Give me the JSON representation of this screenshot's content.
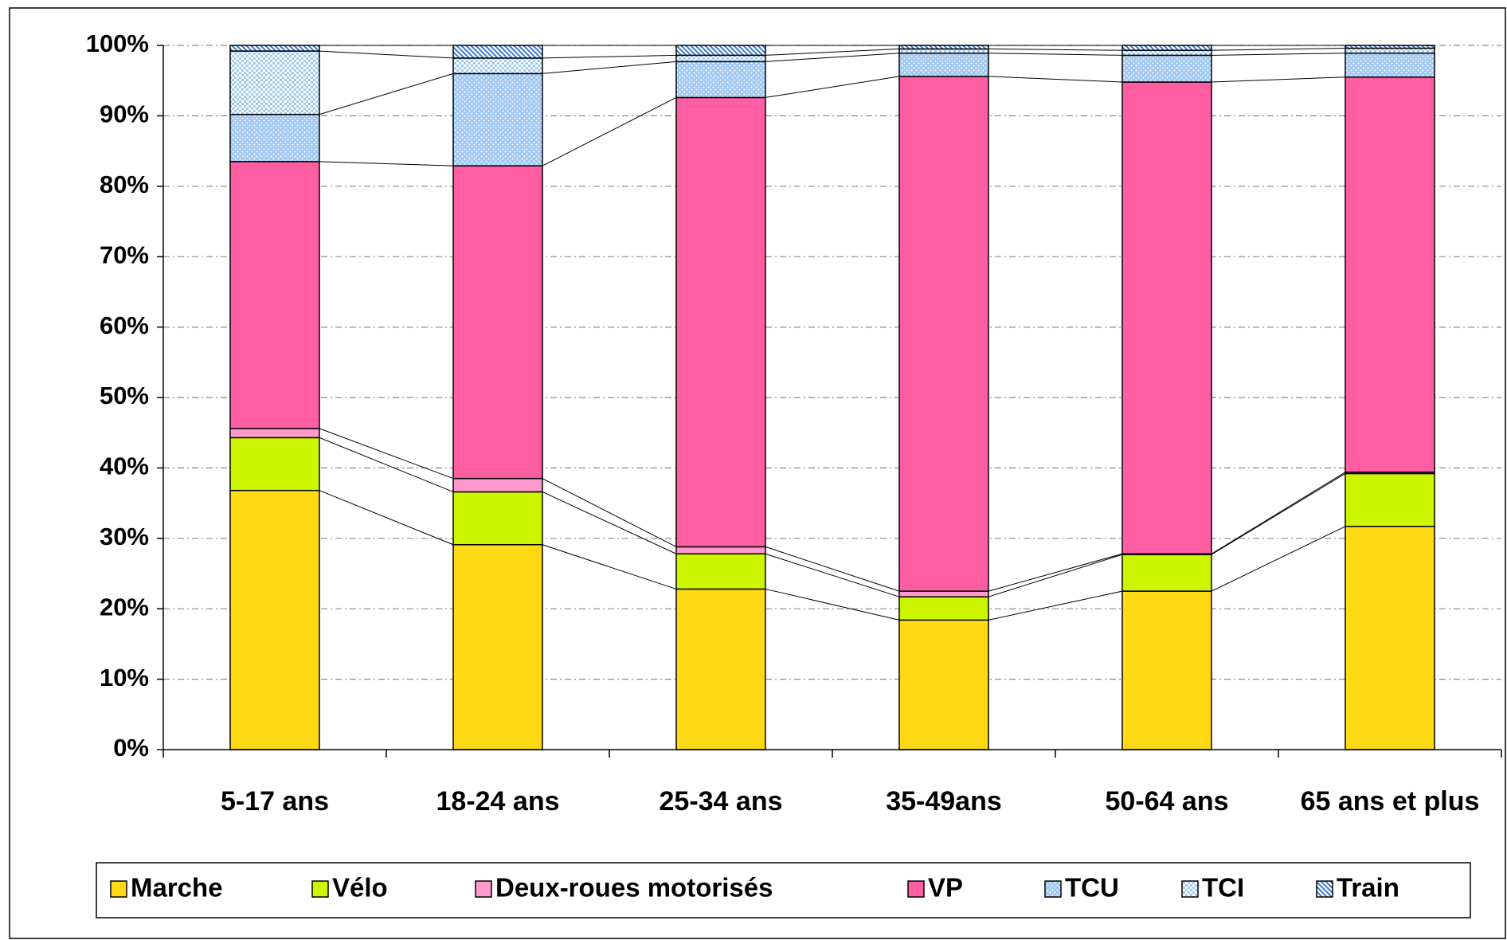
{
  "chart_data": {
    "type": "stacked_bar",
    "categories": [
      "5-17 ans",
      "18-24 ans",
      "25-34 ans",
      "35-49ans",
      "50-64 ans",
      "65 ans et plus"
    ],
    "ylim": [
      0,
      100
    ],
    "yticks": [
      {
        "value": 0,
        "label": "0%"
      },
      {
        "value": 10,
        "label": "10%"
      },
      {
        "value": 20,
        "label": "20%"
      },
      {
        "value": 30,
        "label": "30%"
      },
      {
        "value": 40,
        "label": "40%"
      },
      {
        "value": 50,
        "label": "50%"
      },
      {
        "value": 60,
        "label": "60%"
      },
      {
        "value": 70,
        "label": "70%"
      },
      {
        "value": 80,
        "label": "80%"
      },
      {
        "value": 90,
        "label": "90%"
      },
      {
        "value": 100,
        "label": "100%"
      }
    ],
    "grid": true,
    "legend": "bottom",
    "series": [
      {
        "name": "Marche",
        "color": "#ffd914",
        "pattern": "solid",
        "values": [
          36.8,
          29.1,
          22.8,
          18.4,
          22.5,
          31.7
        ]
      },
      {
        "name": "Vélo",
        "color": "#ccf500",
        "pattern": "solid",
        "values": [
          7.5,
          7.5,
          5.0,
          3.3,
          5.2,
          7.5
        ]
      },
      {
        "name": "Deux-roues motorisés",
        "color": "#ff99cc",
        "pattern": "solid",
        "values": [
          1.3,
          1.9,
          1.0,
          0.8,
          0.1,
          0.2
        ]
      },
      {
        "name": "VP",
        "color": "#ff5fa2",
        "pattern": "solid",
        "values": [
          37.9,
          44.4,
          63.8,
          73.1,
          67.0,
          56.1
        ]
      },
      {
        "name": "TCU",
        "color": "#8fbfef",
        "pattern": "dots",
        "values": [
          6.7,
          13.1,
          5.1,
          3.3,
          3.8,
          3.4
        ]
      },
      {
        "name": "TCI",
        "color": "#9ecbf2",
        "pattern": "checker",
        "values": [
          9.0,
          2.2,
          0.9,
          0.6,
          0.7,
          0.7
        ]
      },
      {
        "name": "Train",
        "color": "#3a7ad0",
        "pattern": "hatch",
        "values": [
          0.8,
          1.8,
          1.4,
          0.5,
          0.7,
          0.4
        ]
      }
    ]
  }
}
